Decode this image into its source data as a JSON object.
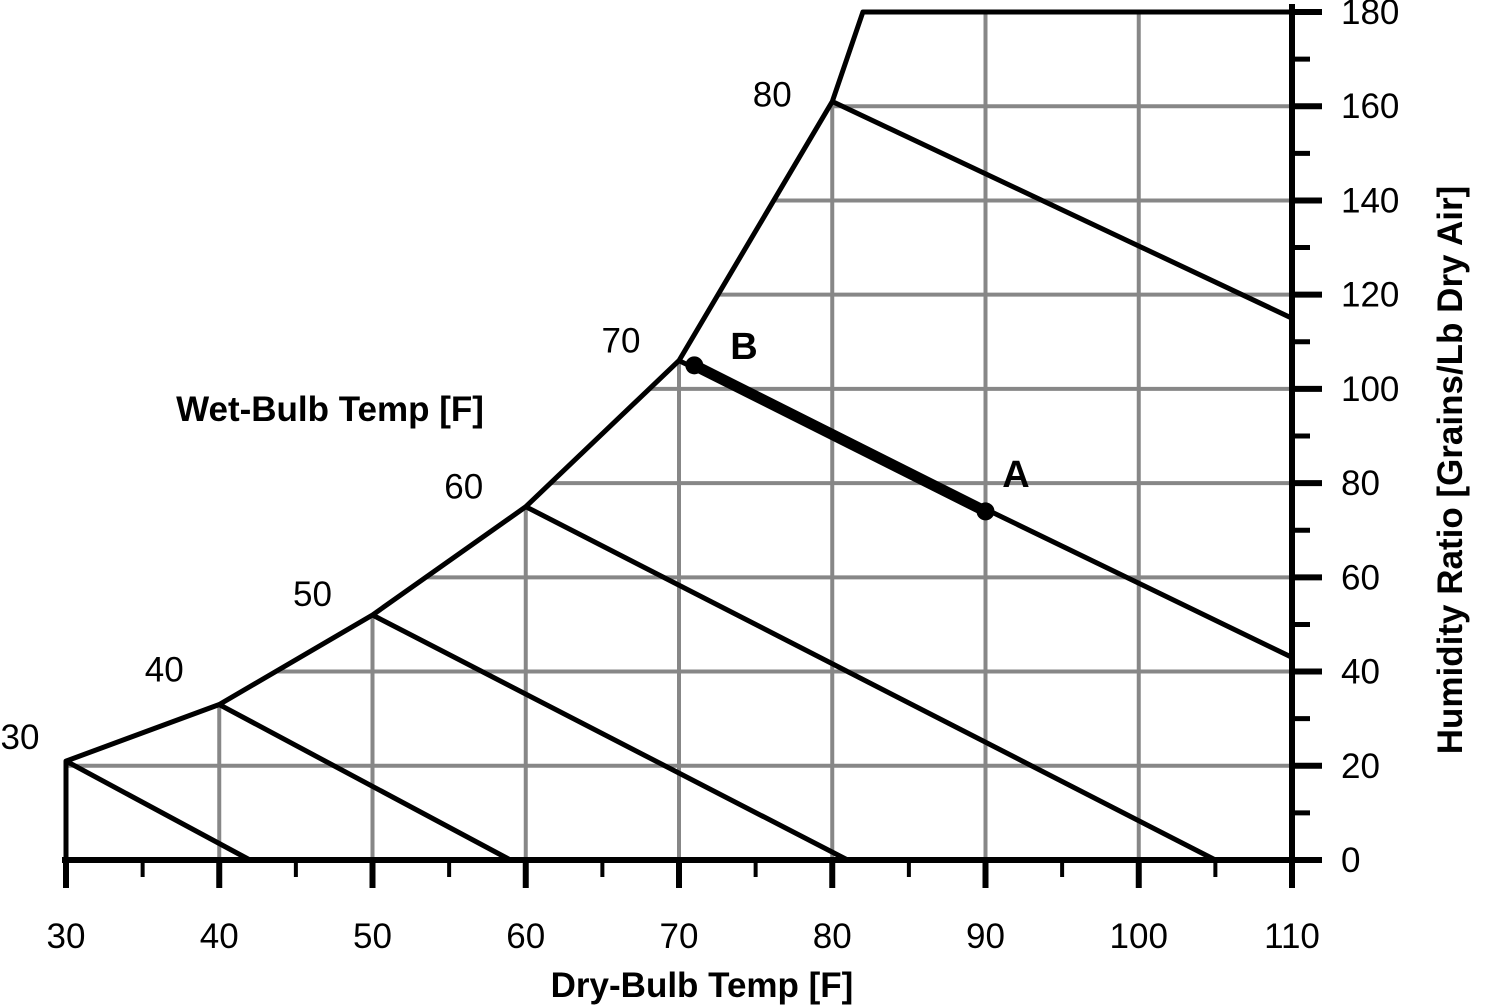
{
  "chart_data": {
    "type": "line",
    "chart_kind": "psychrometric-chart",
    "title": "",
    "x_axis": {
      "label": "Dry-Bulb Temp [F]",
      "min": 30,
      "max": 110,
      "major_tick": 10,
      "minor_tick": 5,
      "tick_labels": [
        "30",
        "40",
        "50",
        "60",
        "70",
        "80",
        "90",
        "100",
        "110"
      ]
    },
    "y_axis": {
      "label": "Humidity Ratio [Grains/Lb Dry Air]",
      "side": "right",
      "min": 0,
      "max": 180,
      "major_tick": 20,
      "minor_tick": 10,
      "tick_labels": [
        "0",
        "20",
        "40",
        "60",
        "80",
        "100",
        "120",
        "140",
        "160",
        "180"
      ]
    },
    "wet_bulb_title": "Wet-Bulb Temp [F]",
    "saturation_curve_points": [
      [
        30,
        21
      ],
      [
        40,
        33
      ],
      [
        50,
        52
      ],
      [
        60,
        75
      ],
      [
        70,
        106
      ],
      [
        80,
        161
      ],
      [
        82,
        180
      ],
      [
        110,
        180
      ]
    ],
    "wet_bulb_lines": [
      {
        "label": "30",
        "start": [
          30,
          21
        ],
        "end": [
          42,
          0
        ]
      },
      {
        "label": "40",
        "start": [
          40,
          33
        ],
        "end": [
          59,
          0
        ]
      },
      {
        "label": "50",
        "start": [
          50,
          52
        ],
        "end": [
          81,
          0
        ]
      },
      {
        "label": "60",
        "start": [
          60,
          75
        ],
        "end": [
          105,
          0
        ]
      },
      {
        "label": "70",
        "start": [
          70,
          106
        ],
        "end": [
          110,
          43
        ]
      },
      {
        "label": "80",
        "start": [
          80,
          161
        ],
        "end": [
          110,
          115
        ]
      }
    ],
    "points": [
      {
        "name": "A",
        "dry_bulb": 90,
        "humidity_ratio": 74
      },
      {
        "name": "B",
        "dry_bulb": 71,
        "humidity_ratio": 105
      }
    ],
    "process_line": {
      "from": "B",
      "to": "A",
      "style": "thick",
      "along_wet_bulb": "70"
    },
    "grid": {
      "horizontal_every": 20,
      "vertical_every": 10,
      "grid_on": true
    },
    "legend": {
      "position": "none"
    },
    "colors": {
      "line": "#000000",
      "grid": "#878787",
      "background": "#ffffff"
    }
  }
}
